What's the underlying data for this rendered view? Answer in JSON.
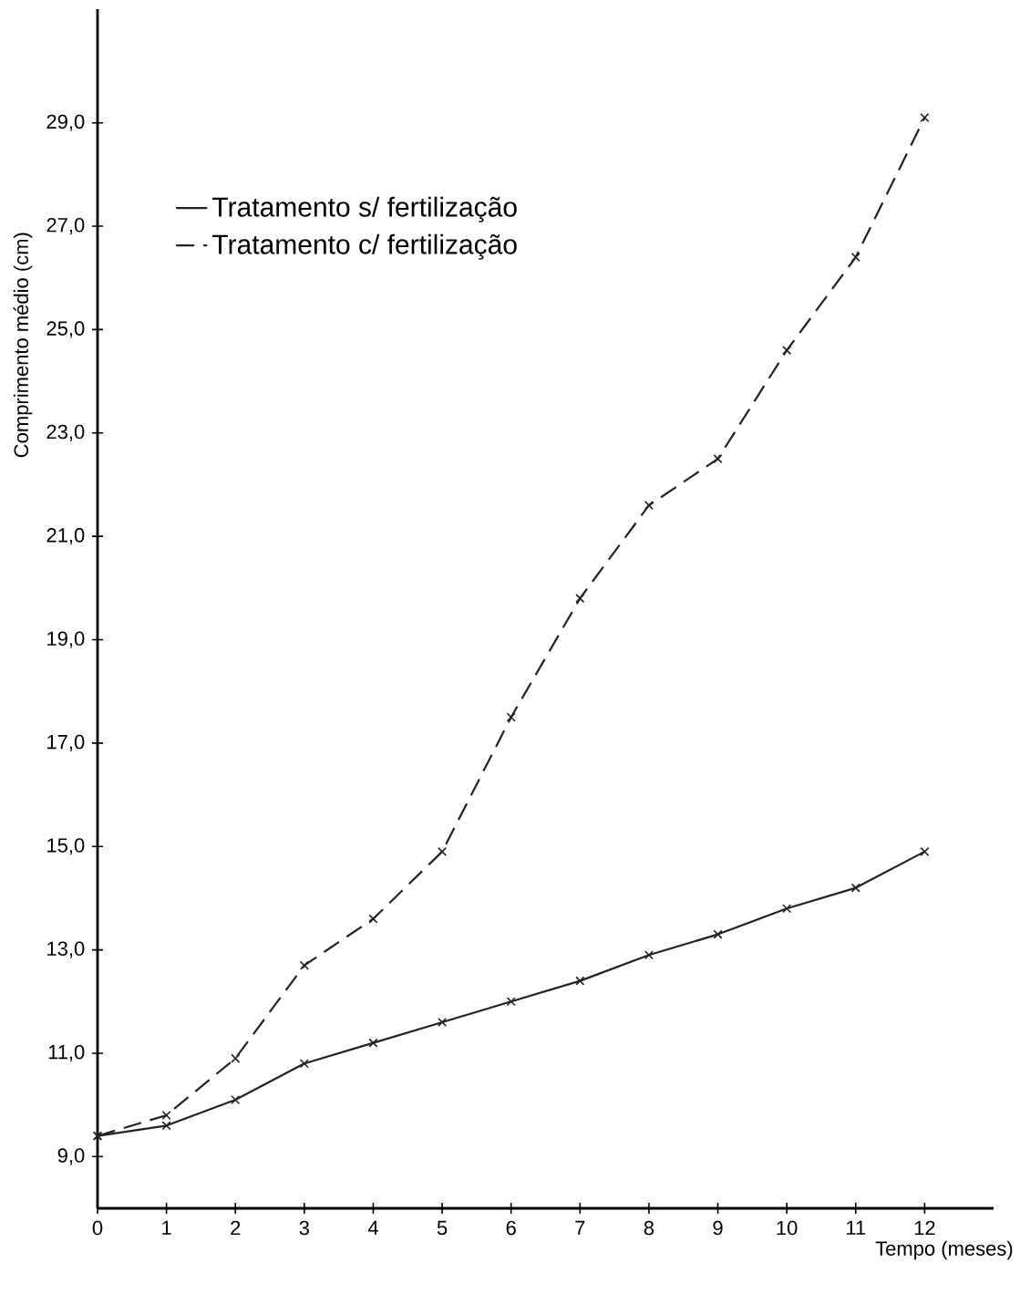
{
  "chart_data": {
    "type": "line",
    "xlabel": "Tempo (meses)",
    "ylabel": "Comprimento médio (cm)",
    "x": [
      0,
      1,
      2,
      3,
      4,
      5,
      6,
      7,
      8,
      9,
      10,
      11,
      12
    ],
    "series": [
      {
        "name": "Tratamento s/ fertilização",
        "color": "#222222",
        "line_style": "solid",
        "values": [
          9.4,
          9.6,
          10.1,
          10.8,
          11.2,
          11.6,
          12.0,
          12.4,
          12.9,
          13.3,
          13.8,
          14.2,
          14.9
        ]
      },
      {
        "name": "Tratamento c/ fertilização",
        "color": "#222222",
        "line_style": "dashed",
        "values": [
          9.4,
          9.8,
          10.9,
          12.7,
          13.6,
          14.9,
          17.5,
          19.8,
          21.6,
          22.5,
          24.6,
          26.4,
          29.1
        ]
      }
    ],
    "marker": "cross",
    "legend": "top left",
    "xlim": [
      0,
      13
    ],
    "xticks": [
      0,
      1,
      2,
      3,
      4,
      5,
      6,
      7,
      8,
      9,
      10,
      11,
      12
    ],
    "ylim": [
      8.0,
      31.2
    ],
    "yticks": [
      {
        "value": 9,
        "label": "9,0"
      },
      {
        "value": 11,
        "label": "11,0"
      },
      {
        "value": 13,
        "label": "13,0"
      },
      {
        "value": 15,
        "label": "15,0"
      },
      {
        "value": 17,
        "label": "17,0"
      },
      {
        "value": 19,
        "label": "19,0"
      },
      {
        "value": 21,
        "label": "21,0"
      },
      {
        "value": 23,
        "label": "23,0"
      },
      {
        "value": 25,
        "label": "25,0"
      },
      {
        "value": 27,
        "label": "27,0"
      },
      {
        "value": 29,
        "label": "29,0"
      }
    ]
  }
}
